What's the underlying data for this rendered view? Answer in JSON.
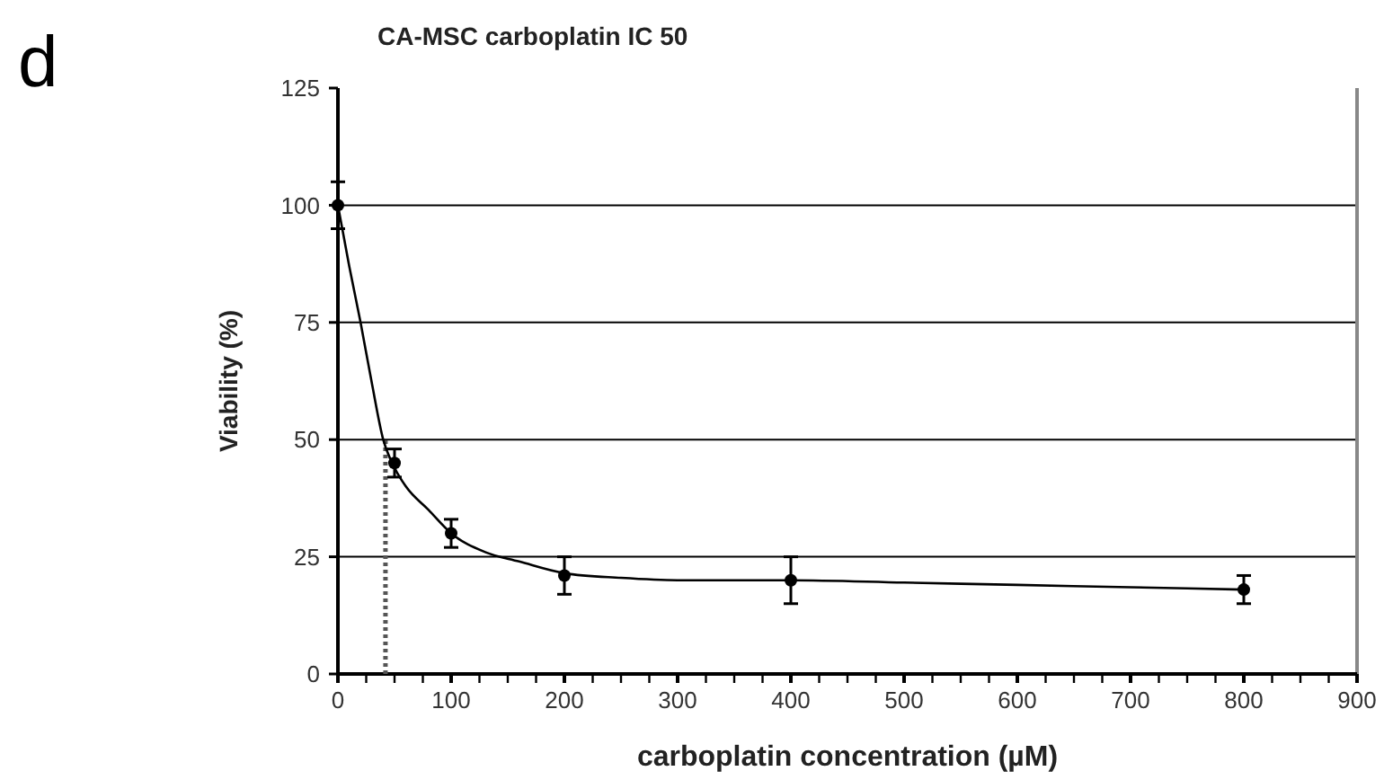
{
  "chart_data": {
    "type": "scatter",
    "title": "CA-MSC carboplatin IC 50",
    "xlabel": "carboplatin concentration (µM)",
    "ylabel": "Viability (%)",
    "annotations": [
      "d"
    ],
    "xlim": [
      0,
      900
    ],
    "xticks": [
      0,
      {
        "value": 25,
        "label": null
      },
      {
        "value": 50,
        "label": null
      },
      {
        "value": 75,
        "label": null
      },
      100,
      {
        "value": 125,
        "label": null
      },
      {
        "value": 150,
        "label": null
      },
      {
        "value": 175,
        "label": null
      },
      200,
      {
        "value": 225,
        "label": null
      },
      {
        "value": 250,
        "label": null
      },
      {
        "value": 275,
        "label": null
      },
      300,
      {
        "value": 325,
        "label": null
      },
      {
        "value": 350,
        "label": null
      },
      {
        "value": 375,
        "label": null
      },
      400,
      {
        "value": 425,
        "label": null
      },
      {
        "value": 450,
        "label": null
      },
      {
        "value": 475,
        "label": null
      },
      500,
      {
        "value": 525,
        "label": null
      },
      {
        "value": 550,
        "label": null
      },
      {
        "value": 575,
        "label": null
      },
      600,
      {
        "value": 625,
        "label": null
      },
      {
        "value": 650,
        "label": null
      },
      {
        "value": 675,
        "label": null
      },
      700,
      {
        "value": 725,
        "label": null
      },
      {
        "value": 750,
        "label": null
      },
      {
        "value": 775,
        "label": null
      },
      800,
      {
        "value": 825,
        "label": null
      },
      {
        "value": 850,
        "label": null
      },
      {
        "value": 875,
        "label": null
      },
      900
    ],
    "ylim": [
      0,
      125
    ],
    "yticks": [
      0,
      25,
      50,
      75,
      100,
      125
    ],
    "grid": "y",
    "marker": "circle",
    "series": [
      {
        "color": "#000000",
        "x": [
          0,
          50,
          100,
          200,
          400,
          800
        ],
        "values": [
          100,
          45,
          30,
          21,
          20,
          18
        ],
        "errors": [
          5,
          3,
          3,
          4,
          5,
          3
        ]
      },
      {
        "type": "line",
        "color": "#000000",
        "marker": "none",
        "line_style": "solid",
        "x": [
          0,
          10,
          20,
          30,
          40,
          50,
          60,
          80,
          100,
          130,
          160,
          200,
          250,
          300,
          400,
          500,
          600,
          700,
          800
        ],
        "values": [
          100,
          87,
          75,
          62,
          50,
          44,
          40,
          35,
          30,
          26,
          24,
          21.5,
          20.5,
          20,
          20,
          19.5,
          19,
          18.5,
          18
        ]
      },
      {
        "type": "line",
        "color": "#555555",
        "marker": "none",
        "line_style": "dotted",
        "x": [
          42,
          42
        ],
        "values": [
          0,
          50
        ]
      }
    ]
  }
}
